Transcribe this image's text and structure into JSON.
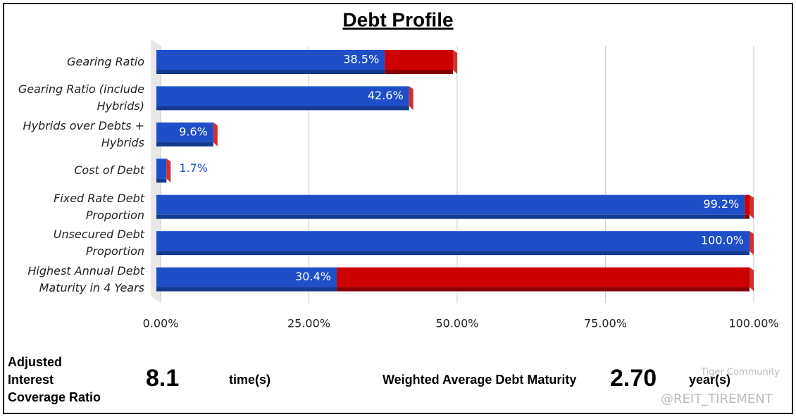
{
  "chart_data": {
    "type": "bar",
    "orientation": "horizontal",
    "stacked": true,
    "title": "Debt Profile",
    "categories": [
      "Gearing Ratio",
      "Gearing Ratio (include Hybrids)",
      "Hybrids over Debts + Hybrids",
      "Cost of Debt",
      "Fixed Rate Debt Proportion",
      "Unsecured Debt Proportion",
      "Highest Annual Debt Maturity in 4 Years"
    ],
    "series": [
      {
        "color": "#1f4fc8",
        "values": [
          38.5,
          42.6,
          9.6,
          1.7,
          99.2,
          100.0,
          30.4
        ],
        "value_labels": [
          "38.5%",
          "42.6%",
          "9.6%",
          "1.7%",
          "99.2%",
          "100.0%",
          "30.4%"
        ]
      },
      {
        "color": "#cc0000",
        "values": [
          11.5,
          0,
          0,
          0,
          0.8,
          0,
          69.6
        ]
      }
    ],
    "xlim": [
      0,
      100
    ],
    "xticks": [
      {
        "value": 0,
        "label": "0.00%"
      },
      {
        "value": 25,
        "label": "25.00%"
      },
      {
        "value": 50,
        "label": "50.00%"
      },
      {
        "value": 75,
        "label": "75.00%"
      },
      {
        "value": 100,
        "label": "100.00%"
      }
    ],
    "grid": true
  },
  "summary": {
    "icr_label": "Adjusted Interest Coverage Ratio",
    "icr_value": "8.1",
    "icr_unit": "time(s)",
    "wadm_label": "Weighted Average Debt Maturity",
    "wadm_value": "2.70",
    "wadm_unit": "year(s)"
  },
  "watermark": {
    "brand": "Tiger Community",
    "handle": "@REIT_TIREMENT"
  }
}
